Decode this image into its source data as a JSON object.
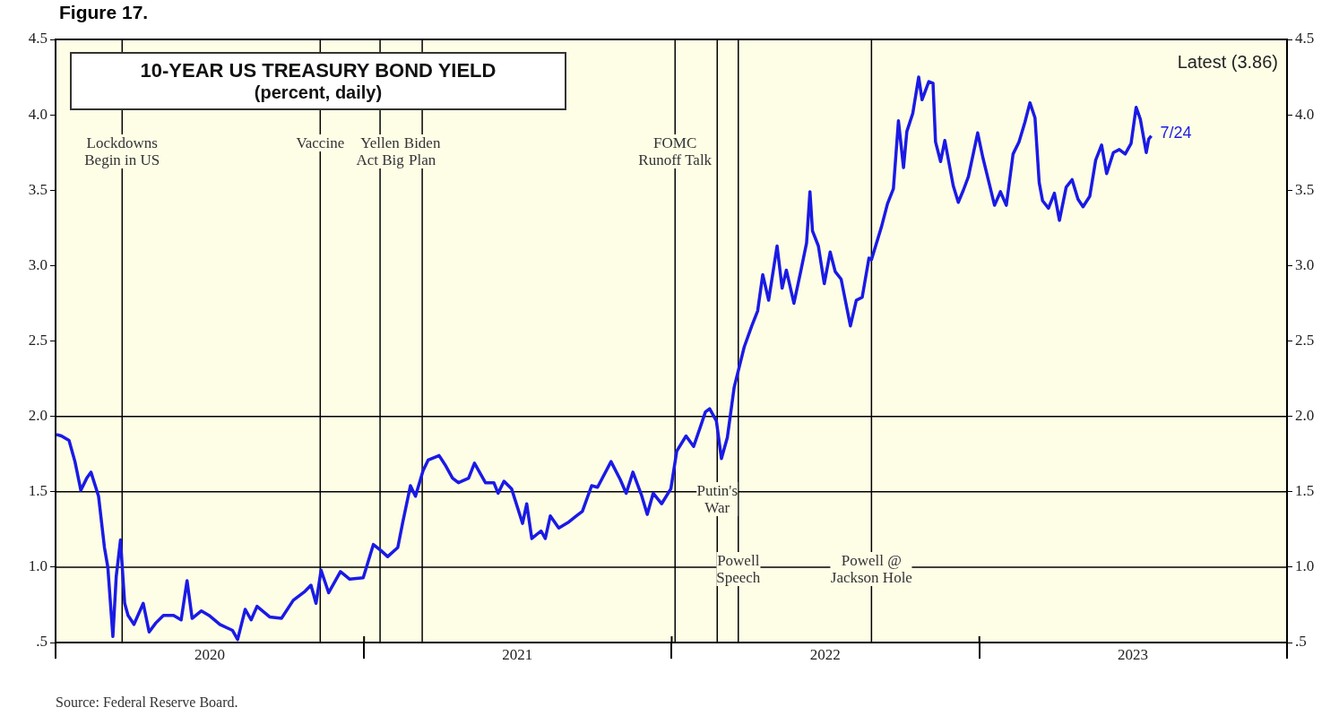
{
  "chart_data": {
    "type": "line",
    "title": "10-YEAR US TREASURY BOND YIELD",
    "subtitle": "(percent, daily)",
    "x": [
      "2020-01-02",
      "2020-01-08",
      "2020-01-17",
      "2020-01-24",
      "2020-01-31",
      "2020-02-07",
      "2020-02-12",
      "2020-02-21",
      "2020-02-28",
      "2020-03-03",
      "2020-03-09",
      "2020-03-13",
      "2020-03-18",
      "2020-03-23",
      "2020-03-27",
      "2020-04-03",
      "2020-04-14",
      "2020-04-21",
      "2020-04-29",
      "2020-05-08",
      "2020-05-20",
      "2020-05-29",
      "2020-06-05",
      "2020-06-11",
      "2020-06-22",
      "2020-07-01",
      "2020-07-14",
      "2020-07-29",
      "2020-08-04",
      "2020-08-13",
      "2020-08-20",
      "2020-08-27",
      "2020-09-11",
      "2020-09-25",
      "2020-10-09",
      "2020-10-23",
      "2020-10-30",
      "2020-11-05",
      "2020-11-11",
      "2020-11-20",
      "2020-12-04",
      "2020-12-15",
      "2020-12-31",
      "2021-01-06",
      "2021-01-12",
      "2021-01-21",
      "2021-01-29",
      "2021-02-10",
      "2021-02-16",
      "2021-02-25",
      "2021-03-03",
      "2021-03-12",
      "2021-03-18",
      "2021-03-31",
      "2021-04-07",
      "2021-04-16",
      "2021-04-23",
      "2021-05-05",
      "2021-05-12",
      "2021-05-25",
      "2021-06-04",
      "2021-06-09",
      "2021-06-16",
      "2021-06-25",
      "2021-07-08",
      "2021-07-13",
      "2021-07-19",
      "2021-07-30",
      "2021-08-04",
      "2021-08-10",
      "2021-08-20",
      "2021-09-01",
      "2021-09-10",
      "2021-09-17",
      "2021-09-28",
      "2021-10-05",
      "2021-10-21",
      "2021-11-01",
      "2021-11-08",
      "2021-11-16",
      "2021-11-26",
      "2021-12-03",
      "2021-12-10",
      "2021-12-20",
      "2021-12-31",
      "2022-01-07",
      "2022-01-18",
      "2022-01-27",
      "2022-02-04",
      "2022-02-10",
      "2022-02-15",
      "2022-02-23",
      "2022-03-01",
      "2022-03-08",
      "2022-03-16",
      "2022-03-28",
      "2022-04-06",
      "2022-04-13",
      "2022-04-19",
      "2022-04-26",
      "2022-05-06",
      "2022-05-12",
      "2022-05-17",
      "2022-05-26",
      "2022-06-03",
      "2022-06-10",
      "2022-06-14",
      "2022-06-17",
      "2022-06-24",
      "2022-07-01",
      "2022-07-08",
      "2022-07-14",
      "2022-07-21",
      "2022-08-01",
      "2022-08-08",
      "2022-08-15",
      "2022-08-23",
      "2022-08-26",
      "2022-09-07",
      "2022-09-14",
      "2022-09-21",
      "2022-09-27",
      "2022-10-03",
      "2022-10-07",
      "2022-10-14",
      "2022-10-21",
      "2022-10-25",
      "2022-11-02",
      "2022-11-07",
      "2022-11-10",
      "2022-11-16",
      "2022-11-21",
      "2022-12-01",
      "2022-12-07",
      "2022-12-13",
      "2022-12-19",
      "2022-12-30",
      "2023-01-05",
      "2023-01-12",
      "2023-01-19",
      "2023-01-26",
      "2023-02-02",
      "2023-02-10",
      "2023-02-17",
      "2023-02-24",
      "2023-03-02",
      "2023-03-08",
      "2023-03-13",
      "2023-03-17",
      "2023-03-24",
      "2023-03-31",
      "2023-04-06",
      "2023-04-14",
      "2023-04-21",
      "2023-04-28",
      "2023-05-04",
      "2023-05-12",
      "2023-05-19",
      "2023-05-26",
      "2023-06-01",
      "2023-06-09",
      "2023-06-16",
      "2023-06-23",
      "2023-06-30",
      "2023-07-06",
      "2023-07-11",
      "2023-07-18",
      "2023-07-21",
      "2023-07-24"
    ],
    "series": [
      {
        "color": "#1a1ae6",
        "values": [
          1.88,
          1.87,
          1.84,
          1.7,
          1.51,
          1.59,
          1.63,
          1.47,
          1.13,
          1.0,
          0.54,
          0.94,
          1.18,
          0.76,
          0.68,
          0.62,
          0.76,
          0.57,
          0.63,
          0.68,
          0.68,
          0.65,
          0.91,
          0.66,
          0.71,
          0.68,
          0.62,
          0.58,
          0.52,
          0.72,
          0.65,
          0.74,
          0.67,
          0.66,
          0.78,
          0.84,
          0.88,
          0.76,
          0.98,
          0.83,
          0.97,
          0.92,
          0.93,
          1.04,
          1.15,
          1.11,
          1.07,
          1.13,
          1.3,
          1.54,
          1.47,
          1.64,
          1.71,
          1.74,
          1.68,
          1.59,
          1.56,
          1.59,
          1.69,
          1.56,
          1.56,
          1.49,
          1.57,
          1.52,
          1.29,
          1.42,
          1.19,
          1.24,
          1.19,
          1.34,
          1.26,
          1.3,
          1.34,
          1.37,
          1.54,
          1.53,
          1.7,
          1.58,
          1.49,
          1.63,
          1.48,
          1.35,
          1.49,
          1.42,
          1.52,
          1.77,
          1.87,
          1.8,
          1.93,
          2.03,
          2.05,
          1.97,
          1.72,
          1.86,
          2.19,
          2.46,
          2.6,
          2.7,
          2.94,
          2.77,
          3.13,
          2.85,
          2.97,
          2.75,
          2.96,
          3.15,
          3.49,
          3.23,
          3.13,
          2.88,
          3.09,
          2.96,
          2.91,
          2.6,
          2.77,
          2.79,
          3.05,
          3.04,
          3.26,
          3.41,
          3.51,
          3.96,
          3.65,
          3.89,
          4.01,
          4.25,
          4.1,
          4.22,
          4.21,
          3.82,
          3.69,
          3.83,
          3.53,
          3.42,
          3.5,
          3.59,
          3.88,
          3.72,
          3.56,
          3.4,
          3.49,
          3.4,
          3.74,
          3.82,
          3.95,
          4.08,
          3.98,
          3.55,
          3.43,
          3.38,
          3.48,
          3.3,
          3.52,
          3.57,
          3.44,
          3.39,
          3.46,
          3.7,
          3.8,
          3.61,
          3.75,
          3.77,
          3.74,
          3.81,
          4.05,
          3.97,
          3.75,
          3.84,
          3.86
        ]
      }
    ],
    "xlim": [
      "2020-01-01",
      "2024-01-01"
    ],
    "xticks": [
      {
        "value": "2020-01-01",
        "label": null
      },
      {
        "value": "2020-07-02",
        "label": "2020"
      },
      {
        "value": "2021-01-01",
        "label": null
      },
      {
        "value": "2021-07-02",
        "label": "2021"
      },
      {
        "value": "2022-01-01",
        "label": null
      },
      {
        "value": "2022-07-02",
        "label": "2022"
      },
      {
        "value": "2023-01-01",
        "label": null
      },
      {
        "value": "2023-07-02",
        "label": "2023"
      },
      {
        "value": "2024-01-01",
        "label": null
      }
    ],
    "ylim": [
      0.5,
      4.5
    ],
    "yticks": [
      {
        "value": 0.5,
        "label": ".5"
      },
      {
        "value": 1.0,
        "label": "1.0"
      },
      {
        "value": 1.5,
        "label": "1.5"
      },
      {
        "value": 2.0,
        "label": "2.0"
      },
      {
        "value": 2.5,
        "label": "2.5"
      },
      {
        "value": 3.0,
        "label": "3.0"
      },
      {
        "value": 3.5,
        "label": "3.5"
      },
      {
        "value": 4.0,
        "label": "4.0"
      },
      {
        "value": 4.5,
        "label": "4.5"
      }
    ],
    "y2lim": [
      0.5,
      4.5
    ],
    "y2ticks": [
      {
        "value": 0.5,
        "label": ".5"
      },
      {
        "value": 1.0,
        "label": "1.0"
      },
      {
        "value": 1.5,
        "label": "1.5"
      },
      {
        "value": 2.0,
        "label": "2.0"
      },
      {
        "value": 2.5,
        "label": "2.5"
      },
      {
        "value": 3.0,
        "label": "3.0"
      },
      {
        "value": 3.5,
        "label": "3.5"
      },
      {
        "value": 4.0,
        "label": "4.0"
      },
      {
        "value": 4.5,
        "label": "4.5"
      }
    ],
    "ref_lines": [
      {
        "axis": "y",
        "value": 1.0,
        "color": "#000000"
      },
      {
        "axis": "y",
        "value": 1.5,
        "color": "#000000"
      },
      {
        "axis": "y",
        "value": 2.0,
        "color": "#000000"
      },
      {
        "axis": "x",
        "value": "2020-03-20",
        "label": "Lockdowns\nBegin in US",
        "color": "#000000"
      },
      {
        "axis": "x",
        "value": "2020-11-10",
        "label": "Vaccine",
        "color": "#000000"
      },
      {
        "axis": "x",
        "value": "2021-01-20",
        "label": "Yellen\nAct Big",
        "color": "#000000"
      },
      {
        "axis": "x",
        "value": "2021-03-11",
        "label": "Biden\nPlan",
        "color": "#000000"
      },
      {
        "axis": "x",
        "value": "2022-01-05",
        "label": "FOMC\nRunoff Talk",
        "color": "#000000"
      },
      {
        "axis": "x",
        "value": "2022-02-24",
        "label": "Putin's\nWar",
        "color": "#000000"
      },
      {
        "axis": "x",
        "value": "2022-03-21",
        "label": "Powell\nSpeech",
        "color": "#000000"
      },
      {
        "axis": "x",
        "value": "2022-08-26",
        "label": "Powell @\nJackson Hole",
        "color": "#000000"
      }
    ],
    "annotations": [
      "Figure 17.",
      "Latest (3.86)",
      {
        "text": "7/24",
        "x": "2023-07-24",
        "y": 3.86
      },
      "Source: Federal Reserve Board."
    ],
    "grid": false,
    "legend": false,
    "marker": "none",
    "line_style": "solid"
  }
}
